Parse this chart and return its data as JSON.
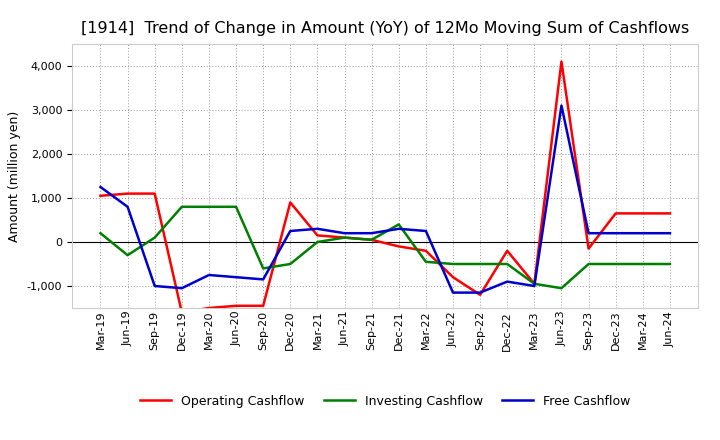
{
  "title": "[1914]  Trend of Change in Amount (YoY) of 12Mo Moving Sum of Cashflows",
  "ylabel": "Amount (million yen)",
  "x_labels": [
    "Mar-19",
    "Jun-19",
    "Sep-19",
    "Dec-19",
    "Mar-20",
    "Jun-20",
    "Sep-20",
    "Dec-20",
    "Mar-21",
    "Jun-21",
    "Sep-21",
    "Dec-21",
    "Mar-22",
    "Jun-22",
    "Sep-22",
    "Dec-22",
    "Mar-23",
    "Jun-23",
    "Sep-23",
    "Dec-23",
    "Mar-24",
    "Jun-24"
  ],
  "operating": [
    1050,
    1100,
    1100,
    -1600,
    -1500,
    -1450,
    -1450,
    900,
    150,
    100,
    50,
    -100,
    -200,
    -800,
    -1200,
    -200,
    -950,
    4100,
    -150,
    650,
    650,
    650
  ],
  "investing": [
    200,
    -300,
    100,
    800,
    800,
    800,
    -600,
    -500,
    0,
    100,
    50,
    400,
    -450,
    -500,
    -500,
    -500,
    -950,
    -1050,
    -500,
    -500,
    -500,
    -500
  ],
  "free": [
    1250,
    800,
    -1000,
    -1050,
    -750,
    -800,
    -850,
    250,
    300,
    200,
    200,
    300,
    250,
    -1150,
    -1150,
    -900,
    -1000,
    3100,
    200,
    200,
    200,
    200
  ],
  "operating_color": "#ff0000",
  "investing_color": "#008000",
  "free_color": "#0000cc",
  "ylim": [
    -1500,
    4500
  ],
  "yticks": [
    -1000,
    0,
    1000,
    2000,
    3000,
    4000
  ],
  "background_color": "#ffffff",
  "grid_color": "#999999",
  "title_fontsize": 11.5,
  "axis_label_fontsize": 9,
  "tick_fontsize": 8,
  "legend_fontsize": 9,
  "linewidth": 1.8
}
